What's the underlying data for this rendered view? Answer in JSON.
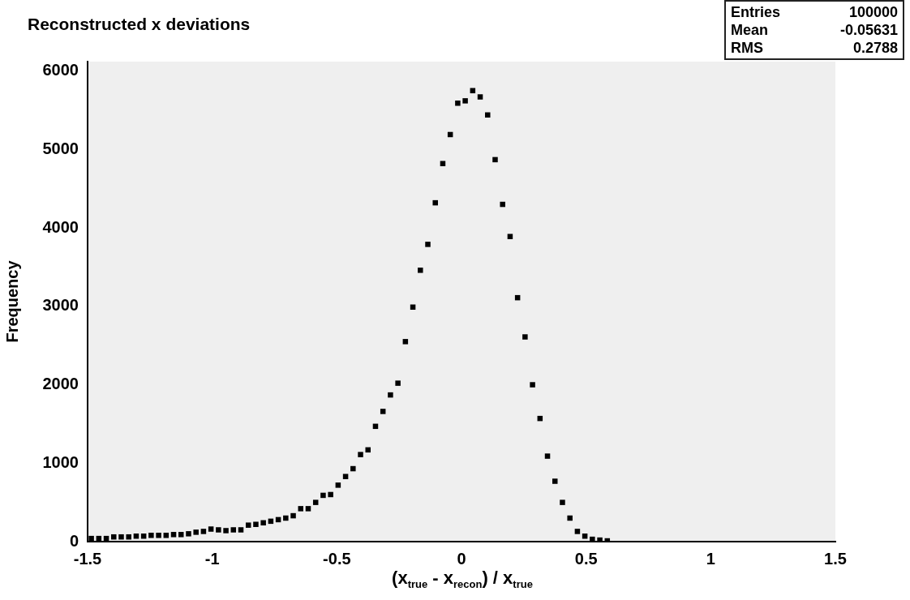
{
  "chart_data": {
    "type": "scatter",
    "title": "Reconstructed x deviations",
    "xlabel": "(x$_{true}$ - x$_{recon}$) / x$_{true}$",
    "ylabel": "Frequency",
    "x": [
      -1.485,
      -1.455,
      -1.425,
      -1.395,
      -1.365,
      -1.335,
      -1.305,
      -1.275,
      -1.245,
      -1.215,
      -1.185,
      -1.155,
      -1.125,
      -1.095,
      -1.065,
      -1.035,
      -1.005,
      -0.975,
      -0.945,
      -0.915,
      -0.885,
      -0.855,
      -0.825,
      -0.795,
      -0.765,
      -0.735,
      -0.705,
      -0.675,
      -0.645,
      -0.615,
      -0.585,
      -0.555,
      -0.525,
      -0.495,
      -0.465,
      -0.435,
      -0.405,
      -0.375,
      -0.345,
      -0.315,
      -0.285,
      -0.255,
      -0.225,
      -0.195,
      -0.165,
      -0.135,
      -0.105,
      -0.075,
      -0.045,
      -0.015,
      0.015,
      0.045,
      0.075,
      0.105,
      0.135,
      0.165,
      0.195,
      0.225,
      0.255,
      0.285,
      0.315,
      0.345,
      0.375,
      0.405,
      0.435,
      0.465,
      0.495,
      0.525,
      0.555,
      0.585
    ],
    "values": [
      40,
      40,
      40,
      60,
      60,
      60,
      70,
      70,
      80,
      80,
      80,
      90,
      90,
      100,
      120,
      130,
      160,
      150,
      140,
      150,
      150,
      210,
      220,
      240,
      260,
      280,
      300,
      330,
      420,
      420,
      500,
      590,
      600,
      720,
      830,
      930,
      1110,
      1170,
      1470,
      1660,
      1870,
      2020,
      2550,
      2990,
      3460,
      3790,
      4320,
      4820,
      5190,
      5590,
      5620,
      5750,
      5670,
      5440,
      4870,
      4300,
      3890,
      3110,
      2610,
      2000,
      1570,
      1090,
      770,
      500,
      300,
      130,
      70,
      30,
      20,
      10
    ],
    "color": "#000000",
    "marker": "square",
    "xlim": [
      -1.5,
      1.5
    ],
    "xticks": [
      -1.5,
      {
        "value": -1,
        "label": "-1"
      },
      -0.5,
      0,
      0.5,
      {
        "value": 1,
        "label": "1"
      },
      1.5
    ],
    "ylim": [
      0,
      6120
    ],
    "yticks": [
      0,
      {
        "value": 1000,
        "label": "1000"
      },
      {
        "value": 2000,
        "label": "2000"
      },
      {
        "value": 3000,
        "label": "3000"
      },
      {
        "value": 4000,
        "label": "4000"
      },
      {
        "value": 5000,
        "label": "5000"
      },
      {
        "value": 6000,
        "label": "6000"
      }
    ],
    "grid": false,
    "legend": false,
    "annotations": [
      "Entries",
      "100000",
      "Mean",
      "-0.05631",
      "RMS",
      "0.2788"
    ]
  }
}
